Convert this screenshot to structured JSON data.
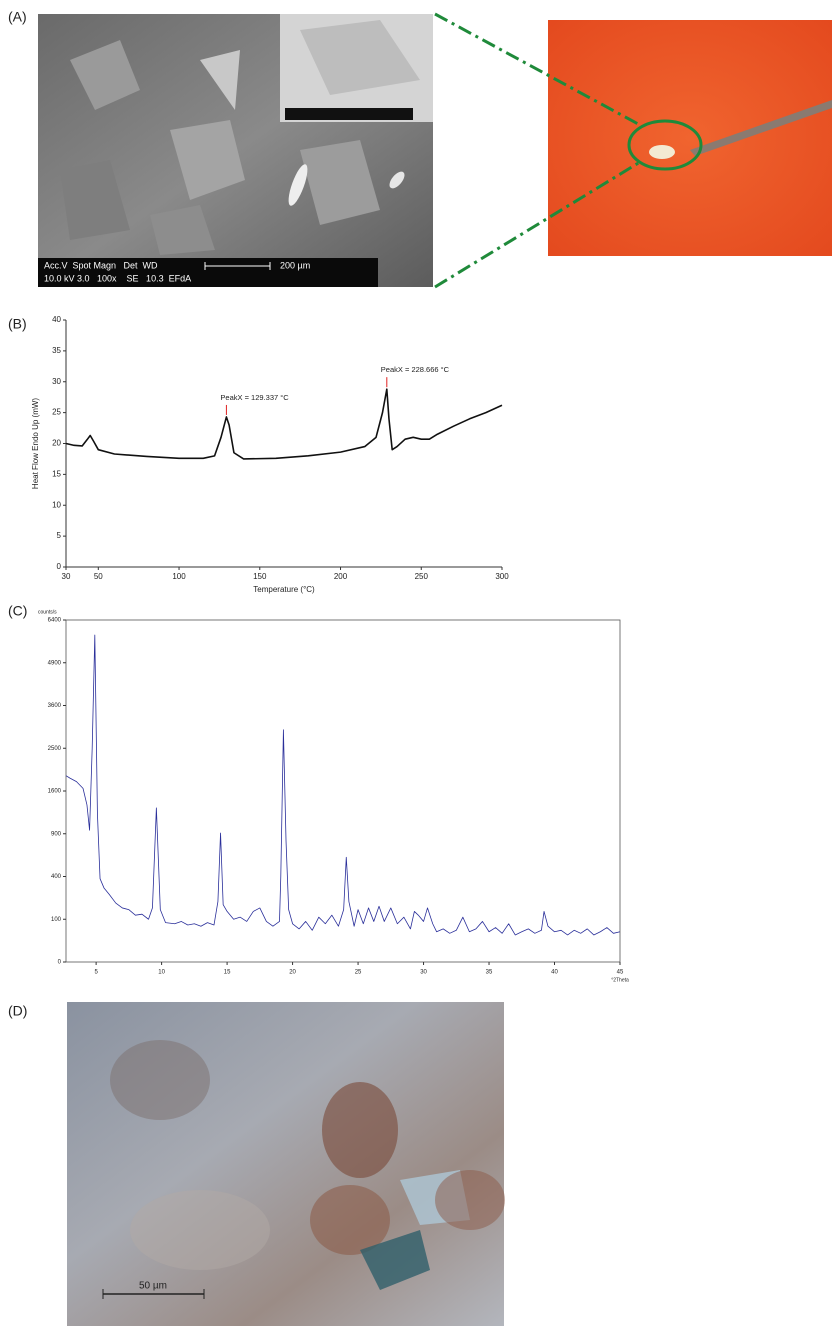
{
  "panel_labels": [
    "(A)",
    "(B)",
    "(C)",
    "(D)"
  ],
  "sem": {
    "info_line_1": "Acc.V  Spot Magn   Det  WD",
    "info_line_2": "10.0 kV 3.0   100x    SE   10.3  EFdA",
    "scale_bar": "200 µm"
  },
  "micrograph": {
    "scale_bar": "50 µm"
  },
  "chart_data": [
    {
      "type": "line",
      "xlabel": "Temperature (°C)",
      "ylabel": "Heat Flow Endo Up (mW)",
      "color": "#111111",
      "x": [
        30,
        35,
        40,
        43,
        45,
        47,
        50,
        60,
        80,
        100,
        115,
        122,
        126,
        129.337,
        131,
        134,
        140,
        160,
        180,
        200,
        215,
        222,
        226,
        228.666,
        230,
        232,
        235,
        240,
        245,
        250,
        255,
        260,
        270,
        280,
        290,
        300
      ],
      "values": [
        20,
        19.7,
        19.6,
        20.6,
        21.3,
        20.4,
        19,
        18.3,
        17.9,
        17.6,
        17.6,
        18,
        21,
        24.3,
        23,
        18.5,
        17.5,
        17.6,
        18,
        18.6,
        19.5,
        21,
        25,
        28.8,
        24,
        19,
        19.5,
        20.7,
        21,
        20.7,
        20.7,
        21.5,
        22.8,
        24,
        25,
        26.2
      ],
      "xlim": [
        30,
        300
      ],
      "xticks": [
        30,
        50,
        100,
        150,
        200,
        250,
        300
      ],
      "ylim": [
        0,
        40
      ],
      "yticks": [
        0,
        5,
        10,
        15,
        20,
        25,
        30,
        35,
        40
      ],
      "annotations": [
        {
          "text": "PeakX = 129.337 °C",
          "x": 129.337
        },
        {
          "text": "PeakX = 228.666 °C",
          "x": 228.666
        }
      ],
      "annotation_color": "#e02020",
      "box": false
    },
    {
      "type": "line",
      "xlabel": "°2Theta",
      "ylabel": "counts/s",
      "color": "#2a2f9a",
      "y_scale": "sqrt",
      "x": [
        2.7,
        3,
        3.5,
        4,
        4.3,
        4.5,
        4.7,
        4.9,
        5.1,
        5.3,
        5.6,
        6,
        6.5,
        7,
        7.5,
        8,
        8.5,
        9,
        9.3,
        9.6,
        9.9,
        10.3,
        11,
        11.5,
        12,
        12.5,
        13,
        13.5,
        14,
        14.3,
        14.5,
        14.7,
        15,
        15.5,
        16,
        16.5,
        17,
        17.5,
        18,
        18.5,
        19,
        19.1,
        19.3,
        19.5,
        19.7,
        20,
        20.5,
        21,
        21.5,
        22,
        22.5,
        23,
        23.5,
        23.9,
        24.1,
        24.3,
        24.7,
        25,
        25.4,
        25.8,
        26.2,
        26.6,
        27,
        27.5,
        28,
        28.5,
        29,
        29.3,
        29.6,
        30,
        30.3,
        30.7,
        31,
        31.5,
        32,
        32.5,
        33,
        33.5,
        34,
        34.5,
        35,
        35.5,
        36,
        36.5,
        37,
        37.5,
        38,
        38.5,
        39,
        39.2,
        39.5,
        40,
        40.5,
        41,
        41.5,
        42,
        42.5,
        43,
        43.5,
        44,
        44.5,
        45
      ],
      "values": [
        1900,
        1850,
        1780,
        1650,
        1350,
        950,
        2500,
        5850,
        1200,
        380,
        300,
        250,
        190,
        160,
        150,
        120,
        125,
        100,
        160,
        1300,
        150,
        85,
        80,
        90,
        75,
        80,
        70,
        85,
        75,
        200,
        910,
        180,
        140,
        100,
        110,
        90,
        140,
        160,
        90,
        70,
        90,
        400,
        2950,
        800,
        150,
        80,
        60,
        90,
        55,
        110,
        80,
        120,
        70,
        150,
        600,
        200,
        70,
        150,
        80,
        160,
        90,
        170,
        90,
        160,
        80,
        110,
        60,
        140,
        120,
        90,
        160,
        80,
        50,
        60,
        45,
        55,
        110,
        50,
        60,
        90,
        50,
        65,
        45,
        80,
        40,
        50,
        60,
        45,
        55,
        140,
        70,
        50,
        55,
        40,
        55,
        45,
        60,
        40,
        50,
        65,
        45,
        50
      ],
      "xlim": [
        2.7,
        45
      ],
      "xticks": [
        5,
        10,
        15,
        20,
        25,
        30,
        35,
        40,
        45
      ],
      "ylim": [
        0,
        6400
      ],
      "yticks": [
        0,
        100,
        400,
        900,
        1600,
        2500,
        3600,
        4900,
        6400
      ],
      "box": true
    }
  ]
}
